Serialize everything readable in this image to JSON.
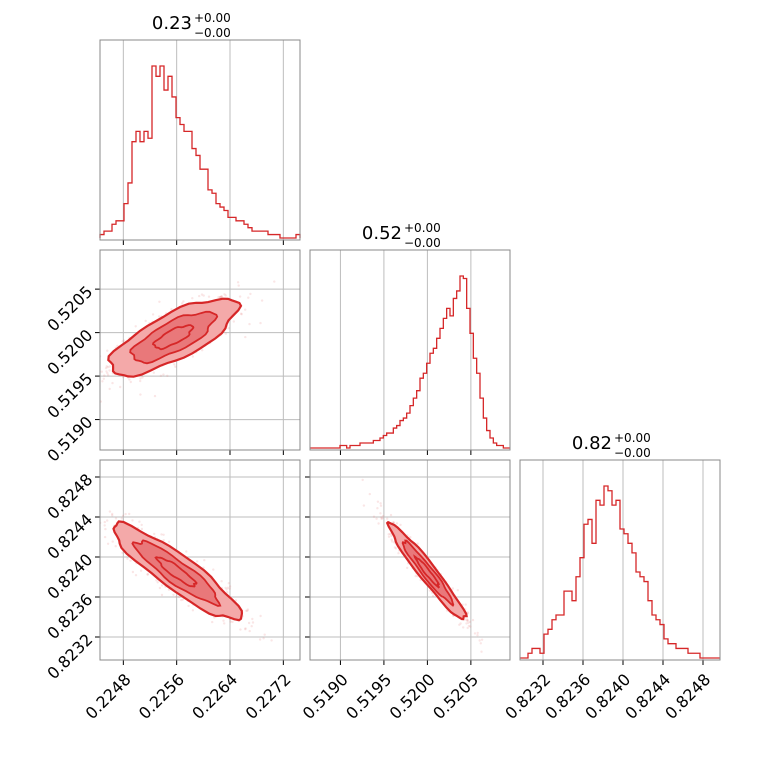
{
  "colors": {
    "series": "#d62728",
    "contour_fill": "#f4a9a9",
    "grid": "#bdbdbd",
    "frame": "#888888"
  },
  "chart_data": {
    "type": "corner",
    "parameters": [
      {
        "title_value": "0.23",
        "title_plus": "+0.00",
        "title_minus": "−0.00",
        "range": [
          0.22445,
          0.22745
        ],
        "ticks": [
          0.2248,
          0.2256,
          0.2264,
          0.2272
        ],
        "tick_labels": [
          "0.2248",
          "0.2256",
          "0.2264",
          "0.2272"
        ]
      },
      {
        "title_value": "0.52",
        "title_plus": "+0.00",
        "title_minus": "−0.00",
        "range": [
          0.51865,
          0.52095
        ],
        "ticks": [
          0.519,
          0.5195,
          0.52,
          0.5205
        ],
        "tick_labels": [
          "0.5190",
          "0.5195",
          "0.5200",
          "0.5205"
        ]
      },
      {
        "title_value": "0.82",
        "title_plus": "+0.00",
        "title_minus": "−0.00",
        "range": [
          0.82297,
          0.82497
        ],
        "ticks": [
          0.8232,
          0.8236,
          0.824,
          0.8244,
          0.8248
        ],
        "tick_labels": [
          "0.8232",
          "0.8236",
          "0.8240",
          "0.8244",
          "0.8248"
        ]
      }
    ],
    "histograms": [
      {
        "param": 0,
        "counts": [
          1,
          2,
          2,
          4,
          5,
          5,
          10,
          16,
          28,
          31,
          28,
          31,
          29,
          50,
          47,
          50,
          43,
          47,
          41,
          35,
          33,
          31,
          31,
          26,
          24,
          20,
          20,
          14,
          13,
          10,
          9,
          8,
          6,
          6,
          5,
          5,
          4,
          3,
          2,
          2,
          2,
          2,
          1,
          1,
          1,
          0,
          0,
          0,
          0,
          1
        ]
      },
      {
        "param": 1,
        "counts": [
          0,
          0,
          0,
          0,
          0,
          0,
          0,
          0,
          0,
          1,
          1,
          0,
          1,
          1,
          1,
          2,
          2,
          2,
          2,
          3,
          3,
          4,
          5,
          6,
          6,
          8,
          9,
          11,
          12,
          14,
          17,
          20,
          23,
          28,
          30,
          34,
          38,
          40,
          44,
          48,
          52,
          56,
          53,
          60,
          63,
          69,
          68,
          56,
          46,
          36,
          30,
          20,
          12,
          7,
          4,
          2,
          1,
          1,
          0,
          0
        ]
      },
      {
        "param": 2,
        "counts": [
          0,
          0,
          1,
          2,
          2,
          1,
          5,
          6,
          8,
          9,
          9,
          14,
          14,
          12,
          17,
          21,
          28,
          29,
          24,
          33,
          32,
          36,
          35,
          32,
          33,
          27,
          26,
          24,
          22,
          18,
          17,
          16,
          12,
          9,
          8,
          7,
          4,
          3,
          3,
          2,
          2,
          2,
          1,
          1,
          1,
          0,
          0,
          0,
          0,
          0
        ]
      }
    ],
    "pairs": [
      {
        "x_param": 0,
        "y_param": 1,
        "correlation": 0.75,
        "mean": [
          0.22555,
          0.51995
        ],
        "sd": [
          0.00048,
          0.00022
        ]
      },
      {
        "x_param": 0,
        "y_param": 2,
        "correlation": -0.9,
        "mean": [
          0.2256,
          0.82385
        ],
        "sd": [
          0.00048,
          0.00024
        ]
      },
      {
        "x_param": 1,
        "y_param": 2,
        "correlation": -0.96,
        "mean": [
          0.52,
          0.82385
        ],
        "sd": [
          0.00022,
          0.00024
        ]
      }
    ],
    "grid": true,
    "legend": "none"
  }
}
